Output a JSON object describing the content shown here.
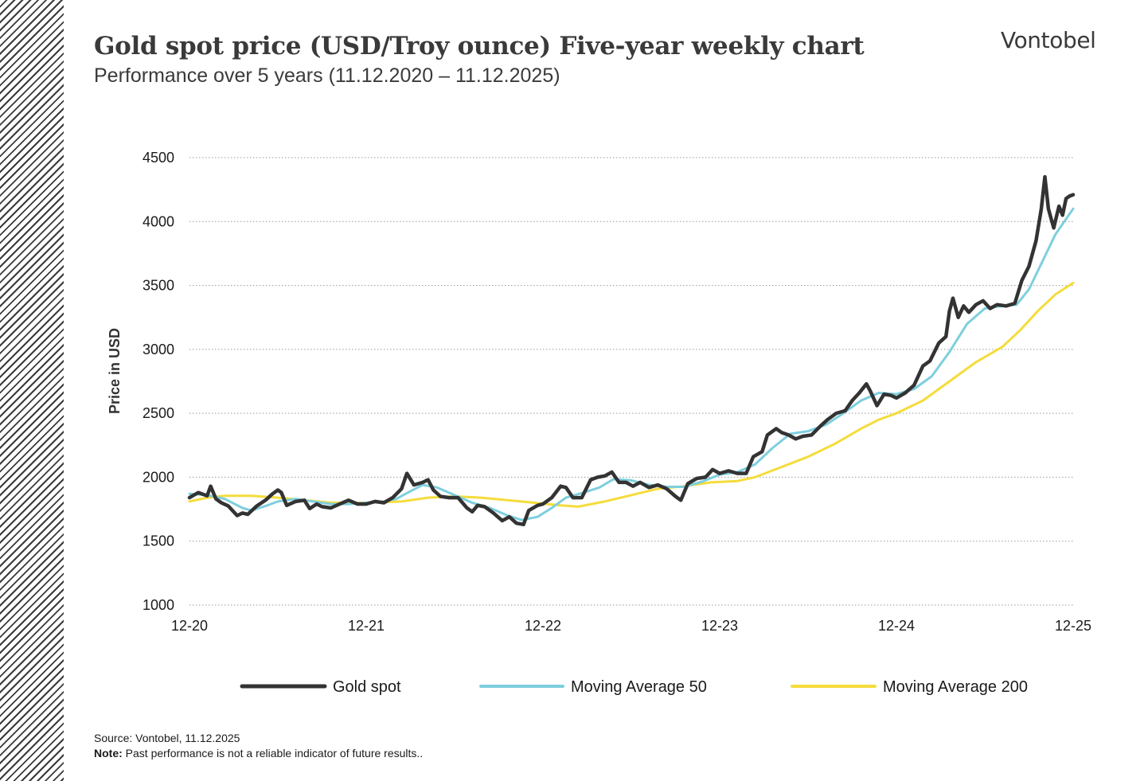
{
  "header": {
    "title": "Gold spot price (USD/Troy ounce) Five-year weekly chart",
    "subtitle": "Performance over 5 years (11.12.2020 – 11.12.2025)",
    "logo": "Vontobel"
  },
  "footer": {
    "source": "Source: Vontobel, 11.12.2025",
    "note_label": "Note:",
    "note_text": " Past performance is not a reliable indicator of future results.."
  },
  "colors": {
    "gold_spot": "#333333",
    "ma50": "#7ecfde",
    "ma200": "#f5dc3c",
    "grid": "#9a9a9a"
  },
  "chart_data": {
    "type": "line",
    "ylabel": "Price in USD",
    "xlabel": "",
    "ylim": [
      1000,
      4500
    ],
    "yticks": [
      "1000",
      "1500",
      "2000",
      "2500",
      "3000",
      "3500",
      "4000",
      "4500"
    ],
    "xlim": [
      2020.95,
      2025.95
    ],
    "xticks": [
      {
        "label": "12-20",
        "x": 2020.95
      },
      {
        "label": "12-21",
        "x": 2021.95
      },
      {
        "label": "12-22",
        "x": 2022.95
      },
      {
        "label": "12-23",
        "x": 2023.95
      },
      {
        "label": "12-24",
        "x": 2024.95
      },
      {
        "label": "12-25",
        "x": 2025.95
      }
    ],
    "grid": true,
    "legend_position": "bottom",
    "series": [
      {
        "name": "Gold spot",
        "points": [
          [
            2020.95,
            1840
          ],
          [
            2021.0,
            1880
          ],
          [
            2021.05,
            1855
          ],
          [
            2021.07,
            1930
          ],
          [
            2021.1,
            1830
          ],
          [
            2021.13,
            1800
          ],
          [
            2021.17,
            1775
          ],
          [
            2021.22,
            1700
          ],
          [
            2021.25,
            1720
          ],
          [
            2021.28,
            1710
          ],
          [
            2021.33,
            1775
          ],
          [
            2021.38,
            1820
          ],
          [
            2021.42,
            1870
          ],
          [
            2021.45,
            1900
          ],
          [
            2021.47,
            1880
          ],
          [
            2021.5,
            1780
          ],
          [
            2021.55,
            1810
          ],
          [
            2021.6,
            1820
          ],
          [
            2021.63,
            1755
          ],
          [
            2021.67,
            1790
          ],
          [
            2021.7,
            1770
          ],
          [
            2021.75,
            1760
          ],
          [
            2021.8,
            1790
          ],
          [
            2021.85,
            1820
          ],
          [
            2021.9,
            1790
          ],
          [
            2021.95,
            1790
          ],
          [
            2022.0,
            1810
          ],
          [
            2022.05,
            1800
          ],
          [
            2022.1,
            1840
          ],
          [
            2022.15,
            1910
          ],
          [
            2022.18,
            2030
          ],
          [
            2022.22,
            1940
          ],
          [
            2022.27,
            1960
          ],
          [
            2022.3,
            1980
          ],
          [
            2022.33,
            1900
          ],
          [
            2022.37,
            1850
          ],
          [
            2022.42,
            1840
          ],
          [
            2022.47,
            1840
          ],
          [
            2022.52,
            1760
          ],
          [
            2022.55,
            1730
          ],
          [
            2022.58,
            1780
          ],
          [
            2022.62,
            1770
          ],
          [
            2022.67,
            1720
          ],
          [
            2022.72,
            1660
          ],
          [
            2022.76,
            1690
          ],
          [
            2022.8,
            1640
          ],
          [
            2022.84,
            1630
          ],
          [
            2022.87,
            1740
          ],
          [
            2022.92,
            1780
          ],
          [
            2022.95,
            1790
          ],
          [
            2023.0,
            1840
          ],
          [
            2023.05,
            1930
          ],
          [
            2023.08,
            1920
          ],
          [
            2023.12,
            1840
          ],
          [
            2023.17,
            1840
          ],
          [
            2023.22,
            1980
          ],
          [
            2023.26,
            2000
          ],
          [
            2023.3,
            2010
          ],
          [
            2023.34,
            2040
          ],
          [
            2023.38,
            1960
          ],
          [
            2023.42,
            1960
          ],
          [
            2023.46,
            1930
          ],
          [
            2023.5,
            1960
          ],
          [
            2023.55,
            1920
          ],
          [
            2023.6,
            1940
          ],
          [
            2023.65,
            1910
          ],
          [
            2023.7,
            1850
          ],
          [
            2023.73,
            1820
          ],
          [
            2023.77,
            1950
          ],
          [
            2023.82,
            1990
          ],
          [
            2023.87,
            2000
          ],
          [
            2023.91,
            2060
          ],
          [
            2023.95,
            2030
          ],
          [
            2024.0,
            2050
          ],
          [
            2024.05,
            2030
          ],
          [
            2024.1,
            2030
          ],
          [
            2024.14,
            2160
          ],
          [
            2024.19,
            2200
          ],
          [
            2024.22,
            2330
          ],
          [
            2024.27,
            2380
          ],
          [
            2024.3,
            2350
          ],
          [
            2024.34,
            2330
          ],
          [
            2024.38,
            2300
          ],
          [
            2024.42,
            2320
          ],
          [
            2024.47,
            2330
          ],
          [
            2024.52,
            2400
          ],
          [
            2024.56,
            2450
          ],
          [
            2024.61,
            2500
          ],
          [
            2024.66,
            2520
          ],
          [
            2024.7,
            2600
          ],
          [
            2024.74,
            2660
          ],
          [
            2024.78,
            2730
          ],
          [
            2024.8,
            2680
          ],
          [
            2024.84,
            2560
          ],
          [
            2024.88,
            2650
          ],
          [
            2024.92,
            2640
          ],
          [
            2024.95,
            2620
          ],
          [
            2025.0,
            2660
          ],
          [
            2025.05,
            2720
          ],
          [
            2025.1,
            2870
          ],
          [
            2025.14,
            2910
          ],
          [
            2025.19,
            3050
          ],
          [
            2025.23,
            3100
          ],
          [
            2025.25,
            3300
          ],
          [
            2025.27,
            3400
          ],
          [
            2025.3,
            3250
          ],
          [
            2025.33,
            3340
          ],
          [
            2025.36,
            3290
          ],
          [
            2025.4,
            3350
          ],
          [
            2025.44,
            3380
          ],
          [
            2025.48,
            3320
          ],
          [
            2025.52,
            3350
          ],
          [
            2025.57,
            3340
          ],
          [
            2025.62,
            3360
          ],
          [
            2025.66,
            3540
          ],
          [
            2025.7,
            3650
          ],
          [
            2025.74,
            3850
          ],
          [
            2025.77,
            4100
          ],
          [
            2025.79,
            4350
          ],
          [
            2025.81,
            4100
          ],
          [
            2025.84,
            3950
          ],
          [
            2025.87,
            4120
          ],
          [
            2025.89,
            4050
          ],
          [
            2025.91,
            4180
          ],
          [
            2025.93,
            4200
          ],
          [
            2025.95,
            4210
          ]
        ]
      },
      {
        "name": "Moving Average 50",
        "points": [
          [
            2020.95,
            1870
          ],
          [
            2021.05,
            1860
          ],
          [
            2021.15,
            1830
          ],
          [
            2021.25,
            1760
          ],
          [
            2021.3,
            1740
          ],
          [
            2021.38,
            1775
          ],
          [
            2021.45,
            1810
          ],
          [
            2021.55,
            1830
          ],
          [
            2021.65,
            1810
          ],
          [
            2021.75,
            1790
          ],
          [
            2021.85,
            1790
          ],
          [
            2021.95,
            1800
          ],
          [
            2022.05,
            1810
          ],
          [
            2022.12,
            1830
          ],
          [
            2022.2,
            1890
          ],
          [
            2022.27,
            1940
          ],
          [
            2022.35,
            1920
          ],
          [
            2022.45,
            1860
          ],
          [
            2022.55,
            1800
          ],
          [
            2022.65,
            1760
          ],
          [
            2022.75,
            1700
          ],
          [
            2022.83,
            1665
          ],
          [
            2022.92,
            1690
          ],
          [
            2023.0,
            1760
          ],
          [
            2023.08,
            1840
          ],
          [
            2023.18,
            1880
          ],
          [
            2023.27,
            1920
          ],
          [
            2023.35,
            1985
          ],
          [
            2023.45,
            1975
          ],
          [
            2023.55,
            1940
          ],
          [
            2023.65,
            1925
          ],
          [
            2023.75,
            1925
          ],
          [
            2023.85,
            1965
          ],
          [
            2023.95,
            2020
          ],
          [
            2024.05,
            2040
          ],
          [
            2024.15,
            2100
          ],
          [
            2024.25,
            2230
          ],
          [
            2024.35,
            2340
          ],
          [
            2024.45,
            2360
          ],
          [
            2024.55,
            2410
          ],
          [
            2024.65,
            2500
          ],
          [
            2024.75,
            2600
          ],
          [
            2024.85,
            2660
          ],
          [
            2024.95,
            2650
          ],
          [
            2025.05,
            2690
          ],
          [
            2025.15,
            2790
          ],
          [
            2025.25,
            2980
          ],
          [
            2025.35,
            3200
          ],
          [
            2025.45,
            3320
          ],
          [
            2025.55,
            3340
          ],
          [
            2025.63,
            3350
          ],
          [
            2025.7,
            3470
          ],
          [
            2025.78,
            3700
          ],
          [
            2025.85,
            3900
          ],
          [
            2025.95,
            4100
          ]
        ]
      },
      {
        "name": "Moving Average 200",
        "points": [
          [
            2020.95,
            1810
          ],
          [
            2021.05,
            1840
          ],
          [
            2021.15,
            1855
          ],
          [
            2021.3,
            1855
          ],
          [
            2021.45,
            1840
          ],
          [
            2021.6,
            1820
          ],
          [
            2021.75,
            1800
          ],
          [
            2021.95,
            1800
          ],
          [
            2022.15,
            1810
          ],
          [
            2022.3,
            1840
          ],
          [
            2022.45,
            1850
          ],
          [
            2022.6,
            1840
          ],
          [
            2022.75,
            1820
          ],
          [
            2022.9,
            1800
          ],
          [
            2023.05,
            1780
          ],
          [
            2023.15,
            1770
          ],
          [
            2023.3,
            1810
          ],
          [
            2023.45,
            1860
          ],
          [
            2023.6,
            1910
          ],
          [
            2023.75,
            1930
          ],
          [
            2023.9,
            1960
          ],
          [
            2024.05,
            1970
          ],
          [
            2024.15,
            2000
          ],
          [
            2024.3,
            2080
          ],
          [
            2024.45,
            2160
          ],
          [
            2024.6,
            2260
          ],
          [
            2024.75,
            2380
          ],
          [
            2024.85,
            2450
          ],
          [
            2024.95,
            2500
          ],
          [
            2025.1,
            2600
          ],
          [
            2025.25,
            2750
          ],
          [
            2025.4,
            2900
          ],
          [
            2025.55,
            3020
          ],
          [
            2025.65,
            3150
          ],
          [
            2025.75,
            3300
          ],
          [
            2025.85,
            3430
          ],
          [
            2025.95,
            3520
          ]
        ]
      }
    ]
  }
}
